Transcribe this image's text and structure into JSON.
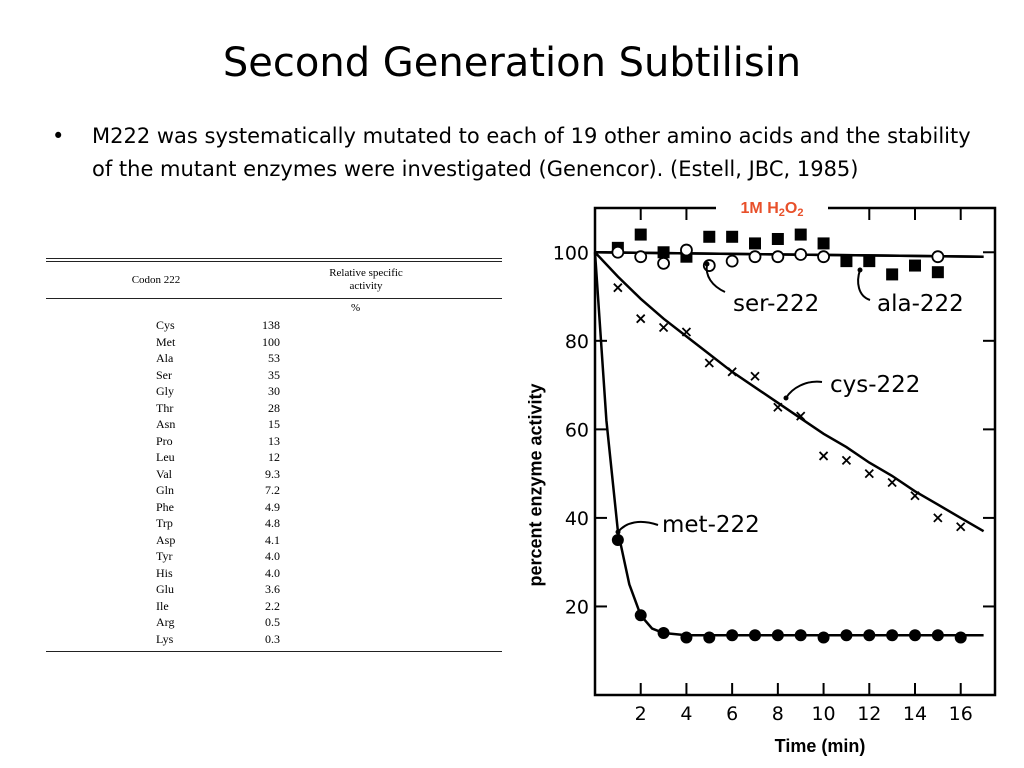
{
  "slide": {
    "title": "Second Generation Subtilisin",
    "bullet_marker": "•",
    "bullet": "M222 was systematically mutated to each of 19 other amino acids and the stability of the mutant enzymes were investigated (Genencor). (Estell, JBC, 1985)"
  },
  "table": {
    "col1_header": "Codon 222",
    "col2_header_line1": "Relative specific",
    "col2_header_line2": "activity",
    "unit": "%",
    "rows": [
      {
        "codon": "Cys",
        "activity": "138"
      },
      {
        "codon": "Met",
        "activity": "100"
      },
      {
        "codon": "Ala",
        "activity": "53"
      },
      {
        "codon": "Ser",
        "activity": "35"
      },
      {
        "codon": "Gly",
        "activity": "30"
      },
      {
        "codon": "Thr",
        "activity": "28"
      },
      {
        "codon": "Asn",
        "activity": "15"
      },
      {
        "codon": "Pro",
        "activity": "13"
      },
      {
        "codon": "Leu",
        "activity": "12"
      },
      {
        "codon": "Val",
        "activity": "9.3"
      },
      {
        "codon": "Gln",
        "activity": "7.2"
      },
      {
        "codon": "Phe",
        "activity": "4.9"
      },
      {
        "codon": "Trp",
        "activity": "4.8"
      },
      {
        "codon": "Asp",
        "activity": "4.1"
      },
      {
        "codon": "Tyr",
        "activity": "4.0"
      },
      {
        "codon": "His",
        "activity": "4.0"
      },
      {
        "codon": "Glu",
        "activity": "3.6"
      },
      {
        "codon": "Ile",
        "activity": "2.2"
      },
      {
        "codon": "Arg",
        "activity": "0.5"
      },
      {
        "codon": "Lys",
        "activity": "0.3"
      }
    ]
  },
  "chart_data": {
    "type": "scatter",
    "title_prefix": "1M H",
    "title_sub1": "2",
    "title_mid": "O",
    "title_sub2": "2",
    "title_color": "#e8502a",
    "xlabel": "Time (min)",
    "ylabel": "percent enzyme activity",
    "xlim": [
      0,
      17.5
    ],
    "ylim": [
      0,
      110
    ],
    "xticks": [
      2,
      4,
      6,
      8,
      10,
      12,
      14,
      16
    ],
    "yticks": [
      20,
      40,
      60,
      80,
      100
    ],
    "grid": false,
    "series": [
      {
        "name": "ala-222",
        "marker": "filled-square",
        "x": [
          1,
          2,
          3,
          4,
          5,
          6,
          7,
          8,
          9,
          10,
          11,
          12,
          13,
          14,
          15
        ],
        "y": [
          101,
          104,
          100,
          99,
          103.5,
          103.5,
          102,
          103,
          104,
          102,
          98,
          98,
          95,
          97,
          95.5
        ],
        "curve_x": [
          0,
          17
        ],
        "curve_y": [
          100,
          99
        ]
      },
      {
        "name": "ser-222",
        "marker": "open-circle",
        "x": [
          1,
          2,
          3,
          4,
          5,
          6,
          7,
          8,
          9,
          10,
          15
        ],
        "y": [
          100,
          99,
          97.5,
          100.5,
          97,
          98,
          99,
          99,
          99.5,
          99,
          99
        ],
        "curve_x": [
          0,
          17
        ],
        "curve_y": [
          100,
          99
        ]
      },
      {
        "name": "cys-222",
        "marker": "x",
        "x": [
          1,
          2,
          3,
          4,
          5,
          6,
          7,
          8,
          9,
          10,
          11,
          12,
          13,
          14,
          15,
          16
        ],
        "y": [
          92,
          85,
          83,
          82,
          75,
          73,
          72,
          65,
          63,
          54,
          53,
          50,
          48,
          45,
          40,
          38
        ],
        "curve_x": [
          0,
          1,
          2,
          3,
          4,
          5,
          6,
          7,
          8,
          9,
          10,
          11,
          12,
          13,
          14,
          15,
          16,
          17
        ],
        "curve_y": [
          100,
          94.5,
          89.5,
          85,
          81,
          77,
          73,
          69.5,
          66,
          62.5,
          59,
          56,
          52.5,
          49.5,
          46,
          43,
          40,
          37
        ]
      },
      {
        "name": "met-222",
        "marker": "filled-circle",
        "x": [
          1,
          2,
          3,
          4,
          5,
          6,
          7,
          8,
          9,
          10,
          11,
          12,
          13,
          14,
          15,
          16
        ],
        "y": [
          35,
          18,
          14,
          13,
          13,
          13.5,
          13.5,
          13.5,
          13.5,
          13,
          13.5,
          13.5,
          13.5,
          13.5,
          13.5,
          13
        ],
        "curve_x": [
          0,
          0.5,
          1,
          1.5,
          2,
          2.5,
          3,
          4,
          6,
          10,
          17
        ],
        "curve_y": [
          100,
          62,
          37,
          25,
          18,
          15,
          14,
          13.5,
          13.5,
          13.5,
          13.5
        ]
      }
    ],
    "annotations": [
      {
        "text": "ser-222",
        "series": "ser-222"
      },
      {
        "text": "ala-222",
        "series": "ala-222"
      },
      {
        "text": "cys-222",
        "series": "cys-222"
      },
      {
        "text": "met-222",
        "series": "met-222"
      }
    ]
  }
}
